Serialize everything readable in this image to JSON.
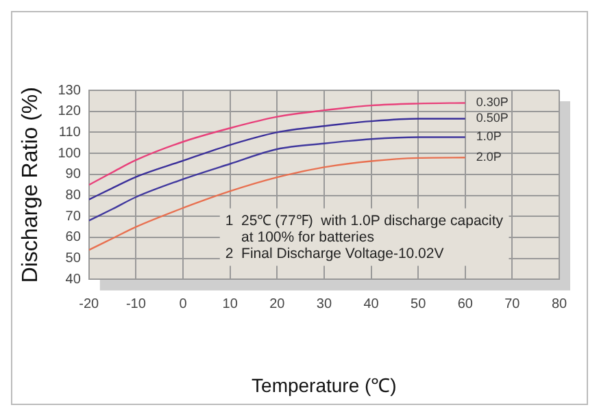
{
  "chart_data": {
    "type": "line",
    "xlabel": "Temperature (℃)",
    "ylabel": "Discharge Ratio (%)",
    "x": [
      -20,
      -15,
      -10,
      0,
      10,
      20,
      30,
      40,
      50,
      60
    ],
    "series": [
      {
        "name": "0.30P",
        "color": "#e8407a",
        "values": [
          85,
          91,
          96.8,
          105.5,
          112,
          117.4,
          120.5,
          122.8,
          123.7,
          124
        ]
      },
      {
        "name": "0.50P",
        "color": "#3a2f9a",
        "values": [
          78,
          83.5,
          88.8,
          96.5,
          104,
          110,
          113,
          115.3,
          116.5,
          116.5
        ]
      },
      {
        "name": "1.0P",
        "color": "#40389e",
        "values": [
          68,
          73.5,
          79.2,
          87.7,
          95,
          102,
          104.7,
          106.8,
          107.7,
          107.7
        ]
      },
      {
        "name": "2.0P",
        "color": "#e87050",
        "values": [
          54,
          59.5,
          65,
          74,
          82,
          88.6,
          93.4,
          96.3,
          97.8,
          98
        ]
      }
    ],
    "xlim": [
      -20,
      80
    ],
    "xticks": [
      -20,
      -10,
      0,
      10,
      20,
      30,
      40,
      50,
      60,
      70,
      80
    ],
    "ylim": [
      40,
      130
    ],
    "yticks": [
      40,
      50,
      60,
      70,
      80,
      90,
      100,
      110,
      120,
      130
    ],
    "grid": true,
    "legend": false,
    "marker": "none",
    "line_style": "solid",
    "annotations": [
      "1  25℃ (77℉)  with 1.0P discharge capacity\n    at 100% for batteries\n2  Final Discharge Voltage-10.02V"
    ]
  }
}
